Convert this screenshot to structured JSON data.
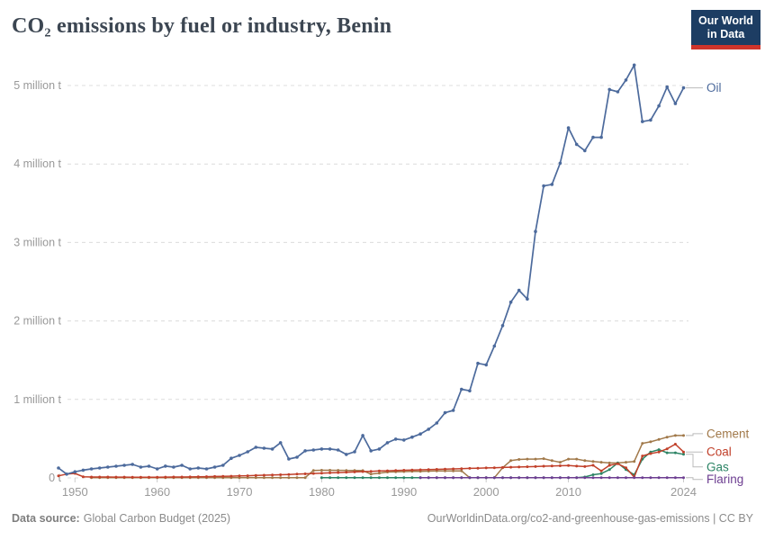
{
  "header": {
    "title": "CO₂ emissions by fuel or industry, Benin",
    "logo": {
      "line1": "Our World",
      "line2": "in Data"
    }
  },
  "footer": {
    "source_label": "Data source:",
    "source_value": "Global Carbon Budget (2025)",
    "credit": "OurWorldinData.org/co2-and-greenhouse-gas-emissions | CC BY"
  },
  "colors": {
    "oil": "#4C6A9C",
    "cement": "#A1794A",
    "coal": "#C1402A",
    "gas": "#2C8465",
    "flaring": "#6D3E91",
    "grid": "#dcdcdc",
    "axis_text": "#999999",
    "tick": "#cccccc",
    "connector": "#bbbbbb",
    "title_text": "#3c4652",
    "footer_text": "#8b8b8b",
    "logo_bg": "#1d3d63",
    "logo_bar": "#cf342b"
  },
  "chart_data": {
    "type": "line",
    "title": "CO₂ emissions by fuel or industry, Benin",
    "unit": "tonnes of CO₂",
    "grid": "horizontal-dashed",
    "legend_position": "right-end-labels",
    "xlim": [
      1948,
      2026
    ],
    "ylim": [
      0,
      5.45
    ],
    "xticks": [
      1950,
      1960,
      1970,
      1980,
      1990,
      2000,
      2010,
      2024
    ],
    "yticks": [
      {
        "value": 0,
        "label": "0 t"
      },
      {
        "value": 1,
        "label": "1 million t"
      },
      {
        "value": 2,
        "label": "2 million t"
      },
      {
        "value": 3,
        "label": "3 million t"
      },
      {
        "value": 4,
        "label": "4 million t"
      },
      {
        "value": 5,
        "label": "5 million t"
      }
    ],
    "years": [
      1948,
      1949,
      1950,
      1951,
      1952,
      1953,
      1954,
      1955,
      1956,
      1957,
      1958,
      1959,
      1960,
      1961,
      1962,
      1963,
      1964,
      1965,
      1966,
      1967,
      1968,
      1969,
      1970,
      1971,
      1972,
      1973,
      1974,
      1975,
      1976,
      1977,
      1978,
      1979,
      1980,
      1981,
      1982,
      1983,
      1984,
      1985,
      1986,
      1987,
      1988,
      1989,
      1990,
      1991,
      1992,
      1993,
      1994,
      1995,
      1996,
      1997,
      1998,
      1999,
      2000,
      2001,
      2002,
      2003,
      2004,
      2005,
      2006,
      2007,
      2008,
      2009,
      2010,
      2011,
      2012,
      2013,
      2014,
      2015,
      2016,
      2017,
      2018,
      2019,
      2020,
      2021,
      2022,
      2023,
      2024
    ],
    "series": [
      {
        "name": "Oil",
        "color": "#4C6A9C",
        "values": [
          0.126,
          0.048,
          0.078,
          0.099,
          0.115,
          0.126,
          0.138,
          0.149,
          0.161,
          0.172,
          0.138,
          0.149,
          0.115,
          0.15,
          0.138,
          0.16,
          0.115,
          0.126,
          0.115,
          0.138,
          0.161,
          0.25,
          0.287,
          0.333,
          0.39,
          0.379,
          0.368,
          0.448,
          0.241,
          0.264,
          0.345,
          0.356,
          0.368,
          0.368,
          0.356,
          0.299,
          0.333,
          0.54,
          0.345,
          0.368,
          0.448,
          0.494,
          0.483,
          0.52,
          0.56,
          0.62,
          0.7,
          0.83,
          0.86,
          1.13,
          1.11,
          1.46,
          1.44,
          1.68,
          1.94,
          2.24,
          2.39,
          2.28,
          3.14,
          3.72,
          3.74,
          4.01,
          4.46,
          4.25,
          4.17,
          4.34,
          4.34,
          4.95,
          4.92,
          5.07,
          5.26,
          4.54,
          4.56,
          4.74,
          4.98,
          4.77,
          4.97
        ]
      },
      {
        "name": "Cement",
        "color": "#A1794A",
        "values": [
          null,
          null,
          null,
          null,
          0.004,
          0.004,
          0.004,
          0.004,
          0.004,
          0.004,
          0.004,
          0.004,
          0.004,
          0.004,
          0.004,
          0.004,
          0.004,
          0.004,
          0.004,
          0.004,
          0.004,
          0.004,
          0.004,
          0.004,
          0.004,
          0.004,
          0.004,
          0.004,
          0.004,
          0.004,
          0.004,
          0.095,
          0.098,
          0.097,
          0.096,
          0.095,
          0.094,
          0.093,
          0.048,
          0.06,
          0.075,
          0.078,
          0.08,
          0.082,
          0.084,
          0.086,
          0.088,
          0.09,
          0.09,
          0.09,
          0.002,
          0.002,
          0.002,
          0.002,
          0.13,
          0.22,
          0.235,
          0.24,
          0.24,
          0.245,
          0.22,
          0.2,
          0.24,
          0.24,
          0.22,
          0.21,
          0.2,
          0.19,
          0.19,
          0.2,
          0.21,
          0.44,
          0.46,
          0.49,
          0.52,
          0.54,
          0.54
        ]
      },
      {
        "name": "Coal",
        "color": "#C1402A",
        "values": [
          0.026,
          0.048,
          0.057,
          0.015,
          0.012,
          0.012,
          0.011,
          0.01,
          0.01,
          0.009,
          0.008,
          0.008,
          0.009,
          0.01,
          0.011,
          0.012,
          0.013,
          0.014,
          0.016,
          0.018,
          0.02,
          0.022,
          0.025,
          0.028,
          0.031,
          0.034,
          0.037,
          0.04,
          0.044,
          0.048,
          0.052,
          0.056,
          0.06,
          0.064,
          0.068,
          0.072,
          0.076,
          0.08,
          0.084,
          0.088,
          0.091,
          0.094,
          0.097,
          0.1,
          0.103,
          0.106,
          0.109,
          0.112,
          0.115,
          0.118,
          0.121,
          0.124,
          0.127,
          0.13,
          0.133,
          0.136,
          0.139,
          0.142,
          0.145,
          0.149,
          0.152,
          0.155,
          0.158,
          0.15,
          0.145,
          0.16,
          0.09,
          0.16,
          0.18,
          0.13,
          0.01,
          0.28,
          0.31,
          0.33,
          0.37,
          0.43,
          0.33
        ]
      },
      {
        "name": "Gas",
        "color": "#2C8465",
        "values": [
          null,
          null,
          null,
          null,
          null,
          null,
          null,
          null,
          null,
          null,
          null,
          null,
          null,
          null,
          null,
          null,
          null,
          null,
          null,
          null,
          null,
          null,
          null,
          null,
          null,
          null,
          null,
          null,
          null,
          null,
          null,
          null,
          0.002,
          0.002,
          0.002,
          0.002,
          0.002,
          0.002,
          0.002,
          0.002,
          0.002,
          0.002,
          0.002,
          0.002,
          0.002,
          0.002,
          0.002,
          0.002,
          0.002,
          0.002,
          0.002,
          0.002,
          0.002,
          0.002,
          0.002,
          0.002,
          0.002,
          0.002,
          0.002,
          0.002,
          0.002,
          0.002,
          0.002,
          0.002,
          0.012,
          0.04,
          0.055,
          0.105,
          0.19,
          0.105,
          0.04,
          0.24,
          0.33,
          0.36,
          0.32,
          0.32,
          0.3
        ]
      },
      {
        "name": "Flaring",
        "color": "#6D3E91",
        "values": [
          null,
          null,
          null,
          null,
          null,
          null,
          null,
          null,
          null,
          null,
          null,
          null,
          null,
          null,
          null,
          null,
          null,
          null,
          null,
          null,
          null,
          null,
          null,
          null,
          null,
          null,
          null,
          null,
          null,
          null,
          null,
          null,
          null,
          null,
          null,
          null,
          null,
          null,
          null,
          null,
          null,
          null,
          null,
          null,
          0.003,
          0.003,
          0.003,
          0.003,
          0.003,
          0.003,
          0.003,
          0.003,
          0.003,
          0.003,
          0.003,
          0.003,
          0.003,
          0.003,
          0.003,
          0.003,
          0.003,
          0.003,
          0.003,
          0.003,
          0.003,
          0.003,
          0.003,
          0.003,
          0.003,
          0.003,
          0.003,
          0.003,
          0.003,
          0.003,
          0.003,
          0.003,
          0.003
        ]
      }
    ]
  }
}
